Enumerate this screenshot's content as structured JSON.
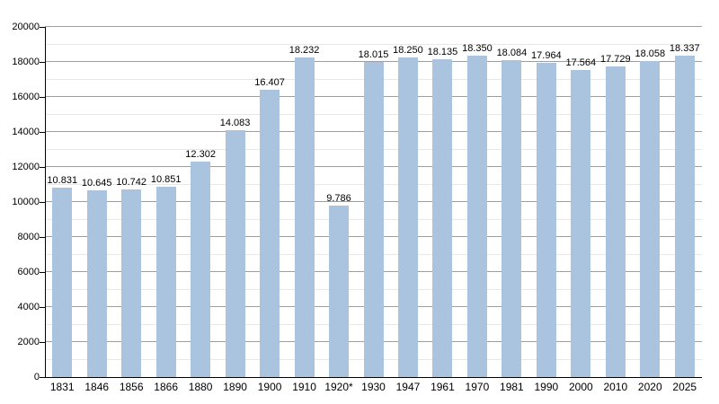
{
  "chart_data": {
    "type": "bar",
    "title": "",
    "xlabel": "",
    "ylabel": "",
    "categories": [
      "1831",
      "1846",
      "1856",
      "1866",
      "1880",
      "1890",
      "1900",
      "1910",
      "1920*",
      "1930",
      "1947",
      "1961",
      "1970",
      "1981",
      "1990",
      "2000",
      "2010",
      "2020",
      "2025"
    ],
    "values": [
      10831,
      10645,
      10742,
      10851,
      12302,
      14083,
      16407,
      18232,
      9786,
      18015,
      18250,
      18135,
      18350,
      18084,
      17964,
      17564,
      17729,
      18058,
      18337
    ],
    "value_labels": [
      "10.831",
      "10.645",
      "10.742",
      "10.851",
      "12.302",
      "14.083",
      "16.407",
      "18.232",
      "9.786",
      "18.015",
      "18.250",
      "18.135",
      "18.350",
      "18.084",
      "17.964",
      "17.564",
      "17.729",
      "18.058",
      "18.337"
    ],
    "ylim": [
      0,
      20000
    ],
    "ytick_step": 2000,
    "minor_ytick_step": 1000,
    "ytick_labels": [
      "0",
      "2000",
      "4000",
      "6000",
      "8000",
      "10000",
      "12000",
      "14000",
      "16000",
      "18000",
      "20000"
    ],
    "grid": true,
    "legend_position": "none",
    "bar_color": "#aac4e0",
    "major_grid_color": "#9e9e9e",
    "minor_grid_color": "#e8e8e8",
    "axis_color": "#000000",
    "background_color": "#ffffff",
    "text_color": "#000000"
  }
}
